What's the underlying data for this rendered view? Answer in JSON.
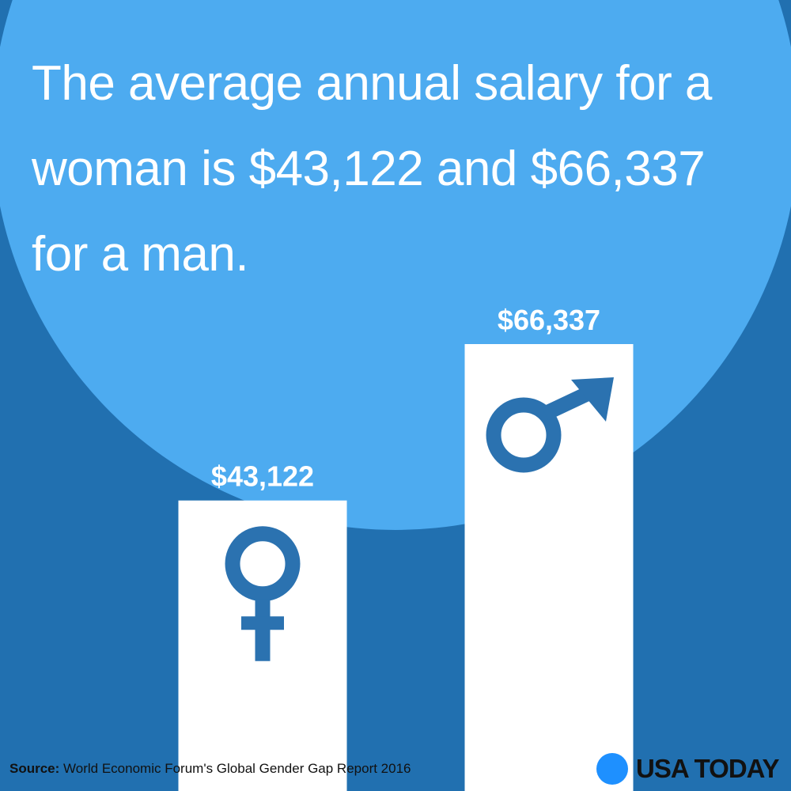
{
  "chart_data": {
    "type": "bar",
    "title": "The average annual salary for a woman is $43,122 and $66,337 for a man.",
    "values": [
      43122,
      66337
    ],
    "value_labels": [
      "$43,122",
      "$66,337"
    ],
    "color": "#ffffff",
    "source_label": "Source:",
    "source": "World Economic Forum's Global Gender Gap Report 2016",
    "brand": "USA TODAY"
  }
}
